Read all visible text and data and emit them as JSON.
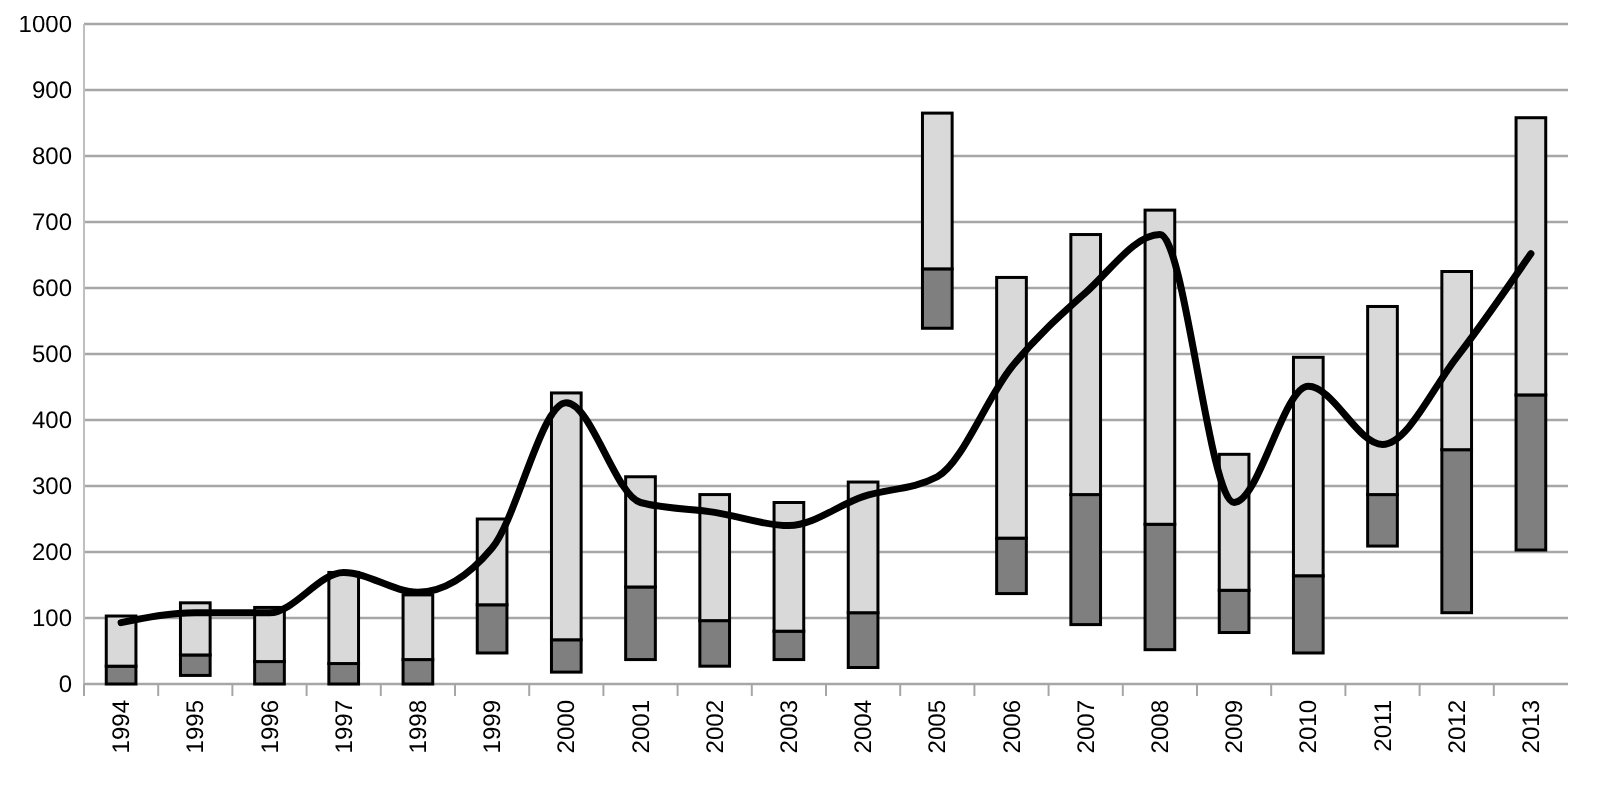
{
  "chart_data": {
    "type": "bar",
    "categories": [
      "1994",
      "1995",
      "1996",
      "1997",
      "1998",
      "1999",
      "2000",
      "2001",
      "2002",
      "2003",
      "2004",
      "2005",
      "2006",
      "2007",
      "2008",
      "2009",
      "2010",
      "2011",
      "2012",
      "2013"
    ],
    "series": [
      {
        "color": "#7f7f7f",
        "base": [
          0,
          13,
          0,
          0,
          0,
          47,
          18,
          37,
          27,
          37,
          25,
          539,
          137,
          90,
          52,
          78,
          47,
          209,
          108,
          203
        ],
        "values": [
          27,
          31,
          34,
          31,
          37,
          73,
          49,
          110,
          69,
          43,
          83,
          90,
          84,
          197,
          190,
          64,
          117,
          78,
          247,
          235
        ]
      },
      {
        "color": "#d9d9d9",
        "base": [
          27,
          44,
          34,
          31,
          37,
          120,
          67,
          147,
          96,
          80,
          108,
          629,
          221,
          287,
          242,
          142,
          164,
          287,
          355,
          438
        ],
        "values": [
          76,
          79,
          82,
          138,
          98,
          130,
          374,
          167,
          191,
          195,
          198,
          236,
          395,
          394,
          476,
          206,
          331,
          285,
          270,
          420
        ]
      },
      {
        "type": "line",
        "color": "#000000",
        "values": [
          93,
          108,
          108,
          169,
          139,
          206,
          426,
          275,
          260,
          240,
          284,
          314,
          480,
          593,
          681,
          275,
          451,
          363,
          495,
          652
        ]
      }
    ],
    "ylim": [
      0,
      1000
    ],
    "yticks": [
      0,
      100,
      200,
      300,
      400,
      500,
      600,
      700,
      800,
      900,
      1000
    ],
    "grid": "y"
  }
}
